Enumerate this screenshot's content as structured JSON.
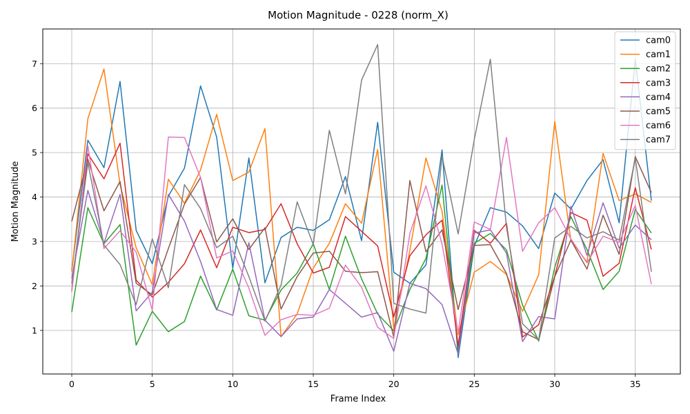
{
  "chart_data": {
    "type": "line",
    "title": "Motion Magnitude - 0228 (norm_X)",
    "xlabel": "Frame Index",
    "ylabel": "Motion Magnitude",
    "xlim": [
      -1.8,
      37.8
    ],
    "ylim": [
      0.02,
      7.78
    ],
    "xticks": [
      0,
      5,
      10,
      15,
      20,
      25,
      30,
      35
    ],
    "yticks": [
      1,
      2,
      3,
      4,
      5,
      6,
      7
    ],
    "grid": true,
    "legend_position": "top-right",
    "x": [
      0,
      1,
      2,
      3,
      4,
      5,
      6,
      7,
      8,
      9,
      10,
      11,
      12,
      13,
      14,
      15,
      16,
      17,
      18,
      19,
      20,
      21,
      22,
      23,
      24,
      25,
      26,
      27,
      28,
      29,
      30,
      31,
      32,
      33,
      34,
      35,
      36
    ],
    "series": [
      {
        "name": "cam0",
        "color": "#1f77b4",
        "values": [
          2.35,
          5.28,
          4.66,
          6.6,
          3.25,
          2.5,
          4.02,
          4.65,
          6.5,
          5.35,
          2.4,
          4.88,
          2.07,
          3.09,
          3.32,
          3.25,
          3.49,
          4.46,
          3.02,
          5.68,
          2.31,
          2.06,
          2.47,
          5.06,
          0.39,
          2.9,
          3.76,
          3.66,
          3.35,
          2.84,
          4.09,
          3.73,
          4.37,
          4.84,
          3.42,
          7.1,
          3.92
        ]
      },
      {
        "name": "cam1",
        "color": "#ff7f0e",
        "values": [
          2.32,
          5.76,
          6.88,
          4.28,
          2.86,
          2.03,
          4.4,
          3.86,
          4.61,
          5.86,
          4.37,
          4.56,
          5.54,
          0.86,
          1.37,
          2.4,
          2.96,
          3.85,
          3.41,
          5.07,
          1.03,
          2.8,
          4.88,
          3.68,
          0.9,
          2.31,
          2.55,
          2.26,
          1.43,
          2.25,
          5.7,
          3.02,
          2.54,
          4.98,
          3.92,
          4.07,
          3.88
        ]
      },
      {
        "name": "cam2",
        "color": "#2ca02c",
        "values": [
          1.41,
          3.76,
          2.95,
          3.38,
          0.67,
          1.43,
          0.97,
          1.2,
          2.22,
          1.46,
          2.38,
          1.33,
          1.23,
          1.91,
          2.29,
          2.95,
          1.92,
          3.12,
          2.16,
          1.37,
          0.99,
          1.92,
          2.62,
          4.27,
          0.55,
          2.96,
          3.18,
          2.81,
          1.57,
          0.76,
          2.42,
          3.56,
          2.82,
          1.92,
          2.33,
          3.72,
          3.19
        ]
      },
      {
        "name": "cam3",
        "color": "#d62728",
        "values": [
          1.89,
          4.97,
          4.41,
          5.21,
          2.13,
          1.75,
          2.08,
          2.5,
          3.26,
          2.41,
          3.32,
          3.2,
          3.27,
          3.85,
          2.95,
          2.29,
          2.42,
          3.56,
          3.23,
          2.9,
          1.3,
          2.68,
          3.15,
          3.48,
          0.66,
          3.25,
          2.96,
          3.41,
          0.85,
          1.13,
          2.22,
          3.65,
          3.48,
          2.22,
          2.51,
          4.21,
          2.82
        ]
      },
      {
        "name": "cam4",
        "color": "#9467bd",
        "values": [
          2.17,
          4.15,
          2.96,
          4.06,
          1.44,
          1.86,
          4.06,
          3.46,
          2.55,
          1.47,
          1.34,
          2.97,
          1.23,
          0.86,
          1.26,
          1.3,
          1.92,
          1.61,
          1.3,
          1.4,
          0.53,
          2.06,
          1.94,
          1.58,
          0.47,
          3.19,
          3.26,
          2.74,
          0.75,
          1.31,
          1.26,
          3.79,
          2.69,
          3.87,
          2.85,
          3.37,
          3.04
        ]
      },
      {
        "name": "cam5",
        "color": "#8c564b",
        "values": [
          3.45,
          4.85,
          3.69,
          4.35,
          2.06,
          1.8,
          2.84,
          3.84,
          4.44,
          2.99,
          3.51,
          2.82,
          3.31,
          1.48,
          2.21,
          2.74,
          2.78,
          2.33,
          2.3,
          2.32,
          0.85,
          4.37,
          2.77,
          3.26,
          1.47,
          2.91,
          2.93,
          2.28,
          0.97,
          0.79,
          2.21,
          3.03,
          2.38,
          3.59,
          2.71,
          4.91,
          4.1
        ]
      },
      {
        "name": "cam6",
        "color": "#e377c2",
        "values": [
          1.87,
          5.15,
          2.84,
          3.24,
          2.76,
          1.45,
          5.35,
          5.34,
          4.44,
          2.63,
          2.79,
          1.95,
          0.89,
          1.24,
          1.36,
          1.34,
          1.5,
          2.47,
          1.97,
          1.07,
          0.82,
          3.18,
          4.25,
          2.94,
          0.95,
          3.44,
          3.27,
          5.34,
          2.78,
          3.42,
          3.76,
          3.06,
          2.52,
          3.12,
          2.98,
          3.81,
          2.04
        ]
      },
      {
        "name": "cam7",
        "color": "#7f7f7f",
        "values": [
          2.05,
          4.77,
          2.92,
          2.48,
          1.58,
          3.06,
          1.96,
          4.28,
          3.74,
          2.86,
          3.12,
          2.21,
          1.21,
          2.02,
          3.89,
          2.93,
          5.5,
          4.07,
          6.63,
          7.43,
          1.61,
          1.48,
          1.39,
          4.92,
          3.17,
          5.29,
          7.1,
          3.32,
          1.15,
          0.79,
          3.08,
          3.34,
          3.08,
          3.22,
          3.03,
          4.88,
          2.32
        ]
      }
    ]
  }
}
